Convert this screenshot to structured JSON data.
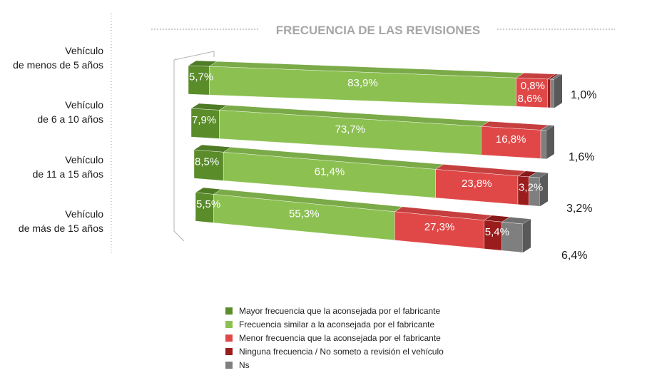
{
  "chart_data": {
    "type": "bar",
    "orientation": "horizontal",
    "stacked": true,
    "percent": true,
    "title": "FRECUENCIA DE LAS REVISIONES",
    "categories": [
      [
        "Vehículo",
        "de menos de 5 años"
      ],
      [
        "Vehículo",
        "de 6 a 10 años"
      ],
      [
        "Vehículo",
        "de 11 a 15 años"
      ],
      [
        "Vehículo",
        "de más de 15 años"
      ]
    ],
    "series": [
      {
        "name": "Mayor frecuencia que la aconsejada por el fabricante",
        "color": "#5a8c2a",
        "values": [
          5.7,
          7.9,
          8.5,
          5.5
        ],
        "labels": [
          "5,7%",
          "7,9%",
          "8,5%",
          "5,5%"
        ]
      },
      {
        "name": "Frecuencia similar a la aconsejada por el fabricante",
        "color": "#8cc152",
        "values": [
          83.9,
          73.7,
          61.4,
          55.3
        ],
        "labels": [
          "83,9%",
          "73,7%",
          "61,4%",
          "55,3%"
        ]
      },
      {
        "name": "Menor frecuencia que la aconsejada por el fabricante",
        "color": "#e04848",
        "values": [
          8.6,
          16.8,
          23.8,
          27.3
        ],
        "labels": [
          "8,6%",
          "16,8%",
          "23,8%",
          "27,3%"
        ]
      },
      {
        "name": "Ninguna frecuencia / No someto a revisión el vehículo",
        "color": "#9b1c1c",
        "values": [
          0.8,
          0,
          3.2,
          5.4
        ],
        "labels": [
          "0,8%",
          "",
          "3,2%",
          "5,4%"
        ]
      },
      {
        "name": "Ns",
        "color": "#7f7f7f",
        "values": [
          1.0,
          1.6,
          3.2,
          6.4
        ],
        "labels": [
          "1,0%",
          "1,6%",
          "3,2%",
          "6,4%"
        ]
      }
    ],
    "legend_position": "bottom",
    "grid": false
  }
}
